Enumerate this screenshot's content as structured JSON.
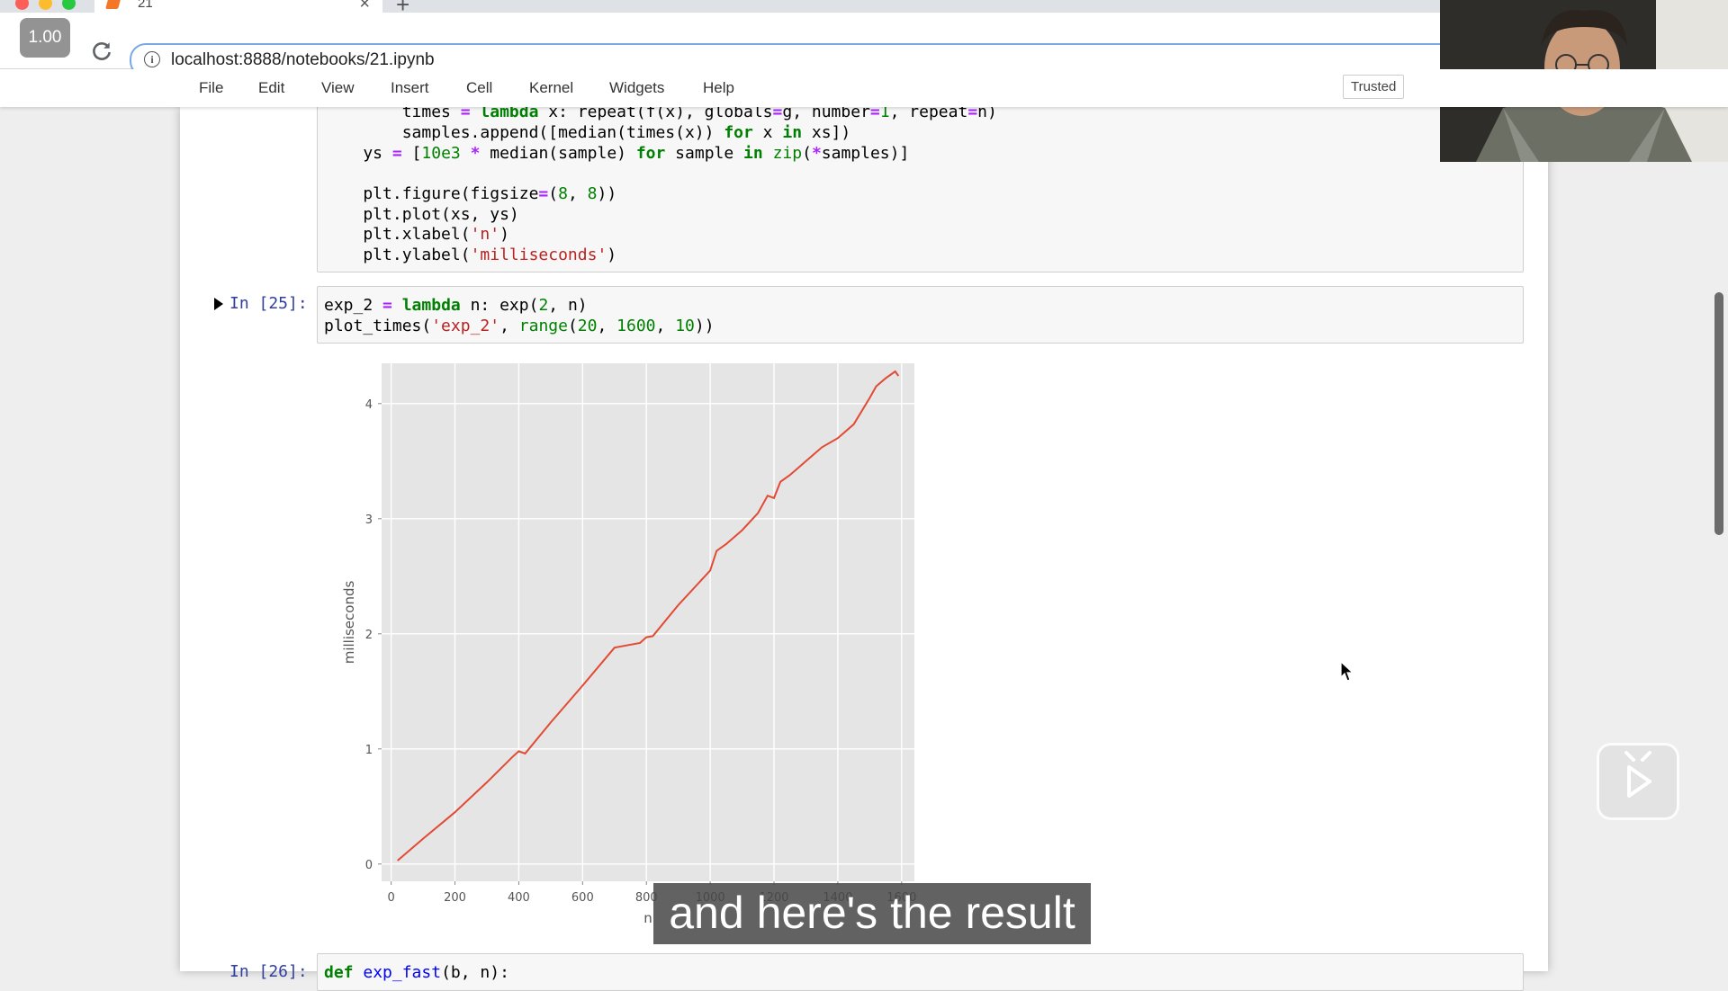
{
  "browser": {
    "tab_title": "21",
    "url": "localhost:8888/notebooks/21.ipynb",
    "playback_speed": "1.00"
  },
  "menu": {
    "items": [
      "File",
      "Edit",
      "View",
      "Insert",
      "Cell",
      "Kernel",
      "Widgets",
      "Help"
    ],
    "trusted": "Trusted"
  },
  "cells": {
    "prev_code": [
      "        times = lambda x: repeat(f(x), globals=g, number=1, repeat=n)",
      "        samples.append([median(times(x)) for x in xs])",
      "    ys = [10e3 * median(sample) for sample in zip(*samples)]",
      "",
      "    plt.figure(figsize=(8, 8))",
      "    plt.plot(xs, ys)",
      "    plt.xlabel('n')",
      "    plt.ylabel('milliseconds')"
    ],
    "exec_prompt": "In [25]:",
    "exec_code": [
      "exp_2 = lambda n: exp(2, n)",
      "plot_times('exp_2', range(20, 1600, 10))"
    ],
    "next_prompt": "In [26]:",
    "next_code": "def exp_fast(b, n):"
  },
  "chart_data": {
    "type": "line",
    "xlabel": "n",
    "ylabel": "milliseconds",
    "xlim": [
      -30,
      1640
    ],
    "ylim": [
      -0.15,
      4.35
    ],
    "xticks": [
      0,
      200,
      400,
      600,
      800,
      1000,
      1200,
      1400,
      1600
    ],
    "yticks": [
      0,
      1,
      2,
      3,
      4
    ],
    "grid": true,
    "series": [
      {
        "color": "#e24a33",
        "x": [
          20,
          100,
          200,
          300,
          380,
          400,
          420,
          500,
          600,
          700,
          780,
          800,
          820,
          900,
          1000,
          1020,
          1050,
          1100,
          1150,
          1180,
          1200,
          1220,
          1250,
          1300,
          1350,
          1400,
          1450,
          1500,
          1520,
          1550,
          1580,
          1590
        ],
        "y": [
          0.03,
          0.22,
          0.45,
          0.71,
          0.93,
          0.98,
          0.96,
          1.23,
          1.55,
          1.88,
          1.92,
          1.97,
          1.98,
          2.25,
          2.55,
          2.72,
          2.78,
          2.9,
          3.05,
          3.2,
          3.18,
          3.32,
          3.38,
          3.5,
          3.62,
          3.7,
          3.82,
          4.05,
          4.15,
          4.22,
          4.28,
          4.24
        ]
      }
    ]
  },
  "overlay": {
    "subtitle": "and here's the result",
    "webcam_icon": "presenter-video",
    "play_icon": "play-icon"
  }
}
